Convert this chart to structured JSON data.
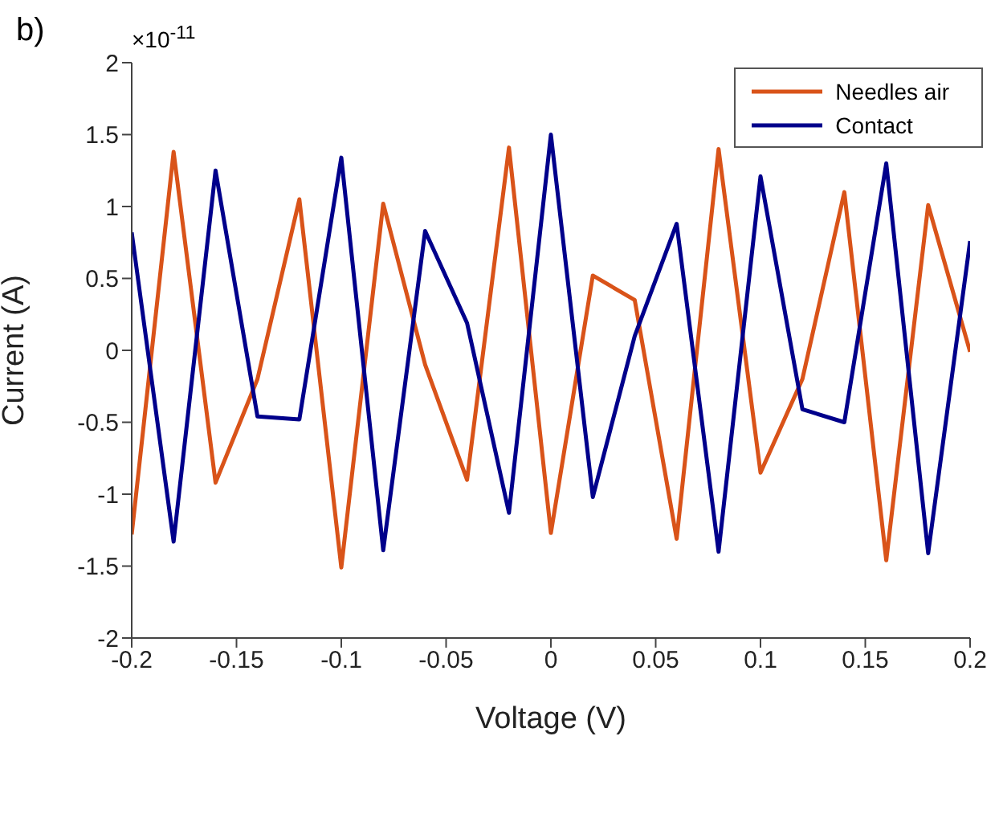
{
  "chart_data": {
    "type": "line",
    "xlabel": "Voltage (V)",
    "ylabel": "Current (A)",
    "annotations": [
      "b)",
      "×10$^{-11}$"
    ],
    "x": [
      -0.2,
      -0.18,
      -0.16,
      -0.14,
      -0.12,
      -0.1,
      -0.08,
      -0.06,
      -0.04,
      -0.02,
      0,
      0.02,
      0.04,
      0.06,
      0.08,
      0.1,
      0.12,
      0.14,
      0.16,
      0.18,
      0.2
    ],
    "series": [
      {
        "name": "Needles air",
        "color": "#d95319",
        "values": [
          -1.28,
          1.38,
          -0.92,
          -0.2,
          1.05,
          -1.51,
          1.02,
          -0.1,
          -0.9,
          1.41,
          -1.27,
          0.52,
          0.35,
          -1.31,
          1.4,
          -0.85,
          -0.2,
          1.1,
          -1.46,
          1.01,
          -0.01
        ]
      },
      {
        "name": "Contact",
        "color": "#00008b",
        "values": [
          0.82,
          -1.33,
          1.25,
          -0.46,
          -0.48,
          1.34,
          -1.39,
          0.83,
          0.19,
          -1.13,
          1.5,
          -1.02,
          0.1,
          0.88,
          -1.4,
          1.21,
          -0.41,
          -0.5,
          1.3,
          -1.41,
          0.76
        ]
      }
    ],
    "xlim": [
      -0.2,
      0.2
    ],
    "xticks": [
      -0.2,
      -0.15,
      -0.1,
      -0.05,
      0,
      0.05,
      0.1,
      0.15,
      0.2
    ],
    "ylim": [
      -2,
      2
    ],
    "yticks": [
      -2,
      -1.5,
      -1,
      -0.5,
      0,
      0.5,
      1,
      1.5,
      2
    ],
    "grid": false,
    "legend": "top right",
    "marker": "none",
    "line_style": "solid"
  }
}
